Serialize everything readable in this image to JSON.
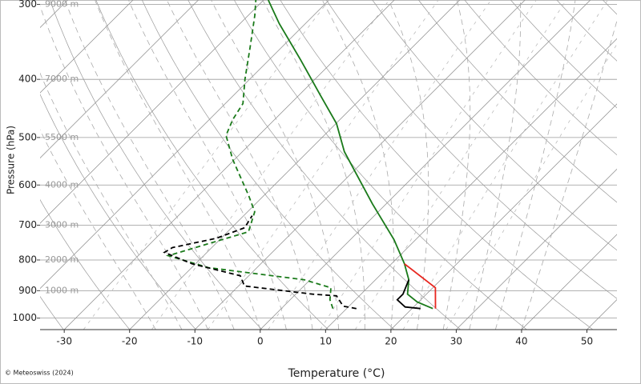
{
  "chart_data": {
    "type": "skewt",
    "ylabel": "Pressure (hPa)",
    "xlabel": "Temperature (°C)",
    "credit": "© Meteoswiss (2024)",
    "log_y": true,
    "ylim": [
      1045,
      295
    ],
    "yticks": [
      300,
      400,
      500,
      600,
      700,
      800,
      900,
      1000
    ],
    "xlim": [
      -33.7,
      54.6
    ],
    "xticks": [
      -30,
      -20,
      -10,
      0,
      10,
      20,
      30,
      40,
      50
    ],
    "grid": true,
    "height_labels": [
      {
        "pressure": 300,
        "label": "9000 m"
      },
      {
        "pressure": 400,
        "label": "7000 m"
      },
      {
        "pressure": 500,
        "label": "5500 m"
      },
      {
        "pressure": 600,
        "label": "4000 m"
      },
      {
        "pressure": 700,
        "label": "3000 m"
      },
      {
        "pressure": 800,
        "label": "2000 m"
      },
      {
        "pressure": 900,
        "label": "1000 m"
      }
    ],
    "series": [
      {
        "color": "#1a7a1a",
        "dash": false,
        "pressure": [
          964,
          940,
          912,
          863,
          812,
          740,
          645,
          528,
          474,
          426,
          371,
          323,
          295
        ],
        "values": [
          23.2,
          19.8,
          17.1,
          15.1,
          12.0,
          6.7,
          -2.1,
          -14.4,
          -19.9,
          -26.6,
          -35.2,
          -44.0,
          -49.3
        ]
      },
      {
        "color": "#1a7a1a",
        "dash": true,
        "pressure": [
          964,
          932,
          890,
          863,
          824,
          787,
          718,
          665,
          625,
          544,
          496,
          467,
          439,
          400,
          354,
          313,
          295
        ],
        "values": [
          7.9,
          6.1,
          4.4,
          -0.9,
          -17.4,
          -25.4,
          -16.8,
          -18.9,
          -22.3,
          -30.3,
          -35.0,
          -36.4,
          -37.3,
          -40.7,
          -44.8,
          -49.0,
          -51.2
        ]
      },
      {
        "color": "#000000",
        "dash": false,
        "pressure": [
          964,
          958,
          932,
          912,
          863
        ],
        "values": [
          21.3,
          18.7,
          16.4,
          16.4,
          15.1
        ]
      },
      {
        "color": "#000000",
        "dash": true,
        "pressure": [
          964,
          955,
          918,
          912,
          884,
          850,
          812,
          777,
          763,
          736,
          707,
          675
        ],
        "values": [
          11.5,
          9.1,
          6.5,
          2.6,
          -9.1,
          -11.3,
          -20.5,
          -26.5,
          -26.0,
          -20.7,
          -18.0,
          -18.7
        ]
      },
      {
        "color": "#e8261f",
        "dash": false,
        "pressure": [
          812,
          890,
          964
        ],
        "values": [
          12.0,
          20.4,
          23.6
        ]
      }
    ]
  }
}
